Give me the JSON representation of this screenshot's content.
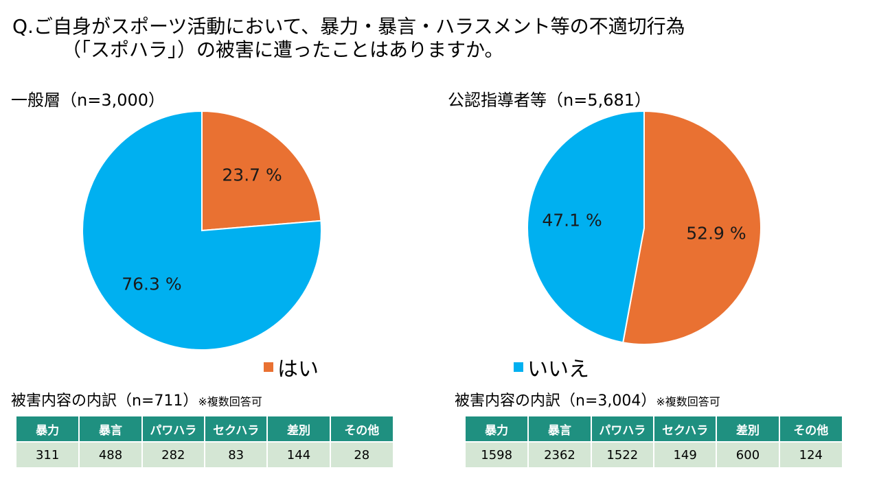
{
  "question": {
    "line1": "Q.ご自身がスポーツ活動において、暴力・暴言・ハラスメント等の不適切行為",
    "line2": "（「スポハラ」）の被害に遭ったことはありますか。"
  },
  "legend": [
    {
      "label": "はい",
      "color": "#e97132"
    },
    {
      "label": "いいえ",
      "color": "#00b0f0"
    }
  ],
  "chart_data": [
    {
      "type": "pie",
      "title": "一般層（n=3,000）",
      "categories": [
        "はい",
        "いいえ"
      ],
      "values": [
        23.7,
        76.3
      ],
      "labels": [
        "23.7 %",
        "76.3 %"
      ],
      "colors": [
        "#e97132",
        "#00b0f0"
      ]
    },
    {
      "type": "pie",
      "title": "公認指導者等（n=5,681）",
      "categories": [
        "はい",
        "いいえ"
      ],
      "values": [
        52.9,
        47.1
      ],
      "labels": [
        "52.9 %",
        "47.1 %"
      ],
      "colors": [
        "#e97132",
        "#00b0f0"
      ]
    }
  ],
  "breakdown": [
    {
      "title": "被害内容の内訳（n=711）",
      "note": "※複数回答可",
      "headers": [
        "暴力",
        "暴言",
        "パワハラ",
        "セクハラ",
        "差別",
        "その他"
      ],
      "values": [
        "311",
        "488",
        "282",
        "83",
        "144",
        "28"
      ]
    },
    {
      "title": "被害内容の内訳（n=3,004）",
      "note": "※複数回答可",
      "headers": [
        "暴力",
        "暴言",
        "パワハラ",
        "セクハラ",
        "差別",
        "その他"
      ],
      "values": [
        "1598",
        "2362",
        "1522",
        "149",
        "600",
        "124"
      ]
    }
  ]
}
